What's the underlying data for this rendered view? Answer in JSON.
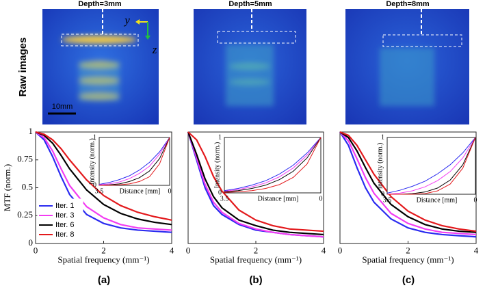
{
  "figure": {
    "row_label": "Raw images",
    "scale_bar": "10mm",
    "axis_labels": [
      "y",
      "z"
    ],
    "panels": [
      {
        "title": "Depth=3mm",
        "label": "(a)"
      },
      {
        "title": "Depth=5mm",
        "label": "(b)"
      },
      {
        "title": "Depth=8mm",
        "label": "(c)"
      }
    ]
  },
  "chart_data": [
    {
      "type": "line",
      "xlabel": "Spatial frequency (mm⁻¹)",
      "ylabel": "MTF (norm.)",
      "legend": "lower left",
      "x": [
        0,
        0.25,
        0.5,
        0.75,
        1,
        1.5,
        2,
        2.5,
        3,
        3.5,
        4
      ],
      "xlim": [
        0,
        4
      ],
      "xticks": [
        0,
        2,
        4
      ],
      "ylim": [
        0,
        1
      ],
      "yticks": [
        0,
        0.25,
        0.5,
        0.75,
        1
      ],
      "series": [
        {
          "name": "Iter. 1",
          "color": "#2b2bf0",
          "values": [
            1,
            0.93,
            0.78,
            0.6,
            0.44,
            0.26,
            0.18,
            0.14,
            0.12,
            0.11,
            0.1
          ]
        },
        {
          "name": "Iter. 3",
          "color": "#f23cf2",
          "values": [
            1,
            0.95,
            0.83,
            0.67,
            0.52,
            0.33,
            0.23,
            0.17,
            0.14,
            0.13,
            0.12
          ]
        },
        {
          "name": "Iter. 6",
          "color": "#000000",
          "values": [
            1,
            0.97,
            0.9,
            0.79,
            0.67,
            0.48,
            0.35,
            0.27,
            0.22,
            0.19,
            0.17
          ]
        },
        {
          "name": "Iter. 8",
          "color": "#e3191c",
          "values": [
            1,
            0.98,
            0.93,
            0.85,
            0.75,
            0.57,
            0.43,
            0.34,
            0.28,
            0.24,
            0.21
          ]
        }
      ]
    },
    {
      "type": "line",
      "xlabel": "Distance [mm]",
      "ylabel": "Intensity (norm.)",
      "x": [
        3.5,
        3,
        2.5,
        2,
        1.5,
        1,
        0.5,
        0
      ],
      "xlim": [
        3.5,
        0
      ],
      "xticks": [
        3.5,
        0
      ],
      "ylim": [
        0,
        1
      ],
      "yticks": [
        0,
        1
      ],
      "series": [
        {
          "color": "#2b2bf0",
          "values": [
            0.02,
            0.06,
            0.12,
            0.2,
            0.32,
            0.48,
            0.7,
            1
          ]
        },
        {
          "color": "#f23cf2",
          "values": [
            0.01,
            0.03,
            0.07,
            0.14,
            0.25,
            0.4,
            0.65,
            1
          ]
        },
        {
          "color": "#000000",
          "values": [
            0,
            0.01,
            0.03,
            0.08,
            0.16,
            0.3,
            0.56,
            1
          ]
        },
        {
          "color": "#e3191c",
          "values": [
            0,
            0,
            0.01,
            0.03,
            0.08,
            0.18,
            0.45,
            1
          ]
        }
      ]
    },
    {
      "type": "line",
      "xlabel": "Spatial frequency (mm⁻¹)",
      "x": [
        0,
        0.25,
        0.5,
        0.75,
        1,
        1.5,
        2,
        2.5,
        3,
        3.5,
        4
      ],
      "xlim": [
        0,
        4
      ],
      "xticks": [
        0,
        2,
        4
      ],
      "ylim": [
        0,
        1
      ],
      "series": [
        {
          "color": "#2b2bf0",
          "values": [
            1,
            0.75,
            0.5,
            0.34,
            0.26,
            0.17,
            0.12,
            0.1,
            0.08,
            0.07,
            0.06
          ]
        },
        {
          "color": "#f23cf2",
          "values": [
            1,
            0.77,
            0.53,
            0.37,
            0.28,
            0.18,
            0.13,
            0.1,
            0.08,
            0.07,
            0.06
          ]
        },
        {
          "color": "#000000",
          "values": [
            1,
            0.8,
            0.58,
            0.42,
            0.32,
            0.21,
            0.16,
            0.12,
            0.1,
            0.09,
            0.08
          ]
        },
        {
          "color": "#e3191c",
          "values": [
            1,
            0.93,
            0.78,
            0.6,
            0.47,
            0.3,
            0.21,
            0.16,
            0.13,
            0.12,
            0.11
          ]
        }
      ]
    },
    {
      "type": "line",
      "xlabel": "Distance [mm]",
      "ylabel": "Intensity (norm.)",
      "x": [
        3.5,
        3,
        2.5,
        2,
        1.5,
        1,
        0.5,
        0
      ],
      "xlim": [
        3.5,
        0
      ],
      "xticks": [
        3.5,
        0
      ],
      "ylim": [
        0,
        1
      ],
      "yticks": [
        0,
        1
      ],
      "series": [
        {
          "color": "#2b2bf0",
          "values": [
            0.04,
            0.08,
            0.14,
            0.22,
            0.34,
            0.5,
            0.72,
            1
          ]
        },
        {
          "color": "#f23cf2",
          "values": [
            0.03,
            0.06,
            0.11,
            0.18,
            0.29,
            0.45,
            0.68,
            1
          ]
        },
        {
          "color": "#000000",
          "values": [
            0.02,
            0.04,
            0.08,
            0.14,
            0.24,
            0.39,
            0.63,
            1
          ]
        },
        {
          "color": "#e3191c",
          "values": [
            0.01,
            0.02,
            0.04,
            0.08,
            0.15,
            0.28,
            0.52,
            1
          ]
        }
      ]
    },
    {
      "type": "line",
      "xlabel": "Spatial frequency (mm⁻¹)",
      "x": [
        0,
        0.25,
        0.5,
        0.75,
        1,
        1.5,
        2,
        2.5,
        3,
        3.5,
        4
      ],
      "xlim": [
        0,
        4
      ],
      "xticks": [
        0,
        2,
        4
      ],
      "ylim": [
        0,
        1
      ],
      "series": [
        {
          "color": "#2b2bf0",
          "values": [
            1,
            0.88,
            0.68,
            0.5,
            0.37,
            0.22,
            0.14,
            0.1,
            0.08,
            0.07,
            0.06
          ]
        },
        {
          "color": "#f23cf2",
          "values": [
            1,
            0.92,
            0.76,
            0.59,
            0.45,
            0.27,
            0.18,
            0.13,
            0.1,
            0.09,
            0.08
          ]
        },
        {
          "color": "#000000",
          "values": [
            1,
            0.95,
            0.83,
            0.68,
            0.54,
            0.35,
            0.24,
            0.17,
            0.13,
            0.11,
            0.1
          ]
        },
        {
          "color": "#e3191c",
          "values": [
            1,
            0.97,
            0.88,
            0.75,
            0.62,
            0.42,
            0.29,
            0.21,
            0.16,
            0.13,
            0.11
          ]
        }
      ]
    },
    {
      "type": "line",
      "xlabel": "Distance [mm]",
      "ylabel": "Intensity (norm.)",
      "x": [
        3.5,
        3,
        2.5,
        2,
        1.5,
        1,
        0.5,
        0
      ],
      "xlim": [
        3.5,
        0
      ],
      "xticks": [
        3.5,
        0
      ],
      "ylim": [
        0,
        1
      ],
      "yticks": [
        0,
        1
      ],
      "series": [
        {
          "color": "#2b2bf0",
          "values": [
            0.02,
            0.07,
            0.14,
            0.23,
            0.36,
            0.52,
            0.73,
            1
          ]
        },
        {
          "color": "#f23cf2",
          "values": [
            0,
            0.02,
            0.06,
            0.13,
            0.24,
            0.4,
            0.64,
            1
          ]
        },
        {
          "color": "#000000",
          "values": [
            0,
            0,
            0.01,
            0.04,
            0.11,
            0.25,
            0.52,
            1
          ]
        },
        {
          "color": "#e3191c",
          "values": [
            0,
            0,
            0,
            0.01,
            0.06,
            0.18,
            0.46,
            1
          ]
        }
      ]
    }
  ]
}
